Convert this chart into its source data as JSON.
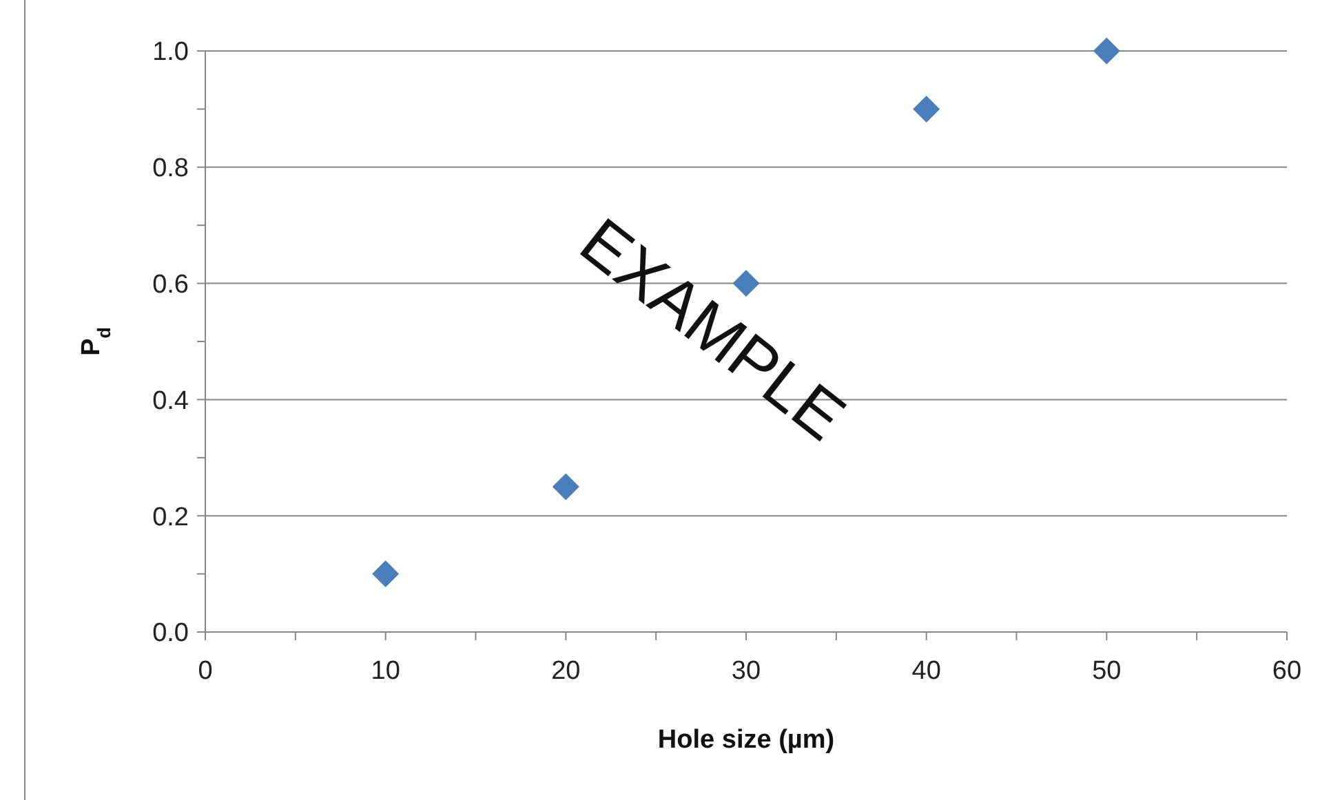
{
  "chart_data": {
    "type": "scatter",
    "xlabel": "Hole size (µm)",
    "ylabel": "P$_{d}$",
    "x": [
      10,
      20,
      30,
      40,
      50
    ],
    "series": [
      {
        "color": "#4a7ebb",
        "values": [
          0.1,
          0.25,
          0.6,
          0.9,
          1.0
        ]
      }
    ],
    "xlim": [
      0,
      60
    ],
    "xticks": [
      0,
      {
        "value": 5,
        "label": null
      },
      10,
      {
        "value": 15,
        "label": null
      },
      20,
      {
        "value": 25,
        "label": null
      },
      30,
      {
        "value": 35,
        "label": null
      },
      40,
      {
        "value": 45,
        "label": null
      },
      50,
      {
        "value": 55,
        "label": null
      },
      60
    ],
    "ylim": [
      0,
      1
    ],
    "yticks": [
      {
        "value": 0,
        "label": "0.0"
      },
      {
        "value": 0.1,
        "label": null
      },
      {
        "value": 0.2,
        "label": "0.2"
      },
      {
        "value": 0.3,
        "label": null
      },
      {
        "value": 0.4,
        "label": "0.4"
      },
      {
        "value": 0.5,
        "label": null
      },
      {
        "value": 0.6,
        "label": "0.6"
      },
      {
        "value": 0.7,
        "label": null
      },
      {
        "value": 0.8,
        "label": "0.8"
      },
      {
        "value": 0.9,
        "label": null
      },
      {
        "value": 1,
        "label": "1.0"
      }
    ],
    "grid": "y",
    "marker": "diamond",
    "annotations": [
      "EXAMPLE"
    ]
  }
}
